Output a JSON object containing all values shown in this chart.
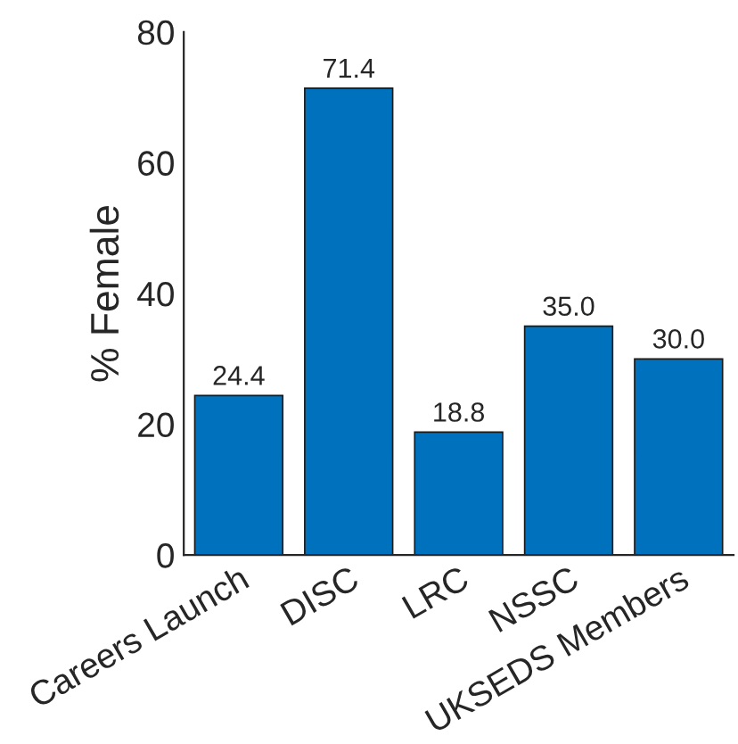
{
  "chart_data": {
    "type": "bar",
    "ylabel": "% Female",
    "categories": [
      "Careers Launch",
      "DISC",
      "LRC",
      "NSSC",
      "UKSEDS Members"
    ],
    "values": [
      24.4,
      71.4,
      18.8,
      35.0,
      30.0
    ],
    "value_labels": [
      "24.4",
      "71.4",
      "18.8",
      "35.0",
      "30.0"
    ],
    "color": "#0072bd",
    "ylim": [
      0,
      80
    ],
    "yticks": [
      0,
      20,
      40,
      60,
      80
    ],
    "grid": false,
    "legend": false
  }
}
